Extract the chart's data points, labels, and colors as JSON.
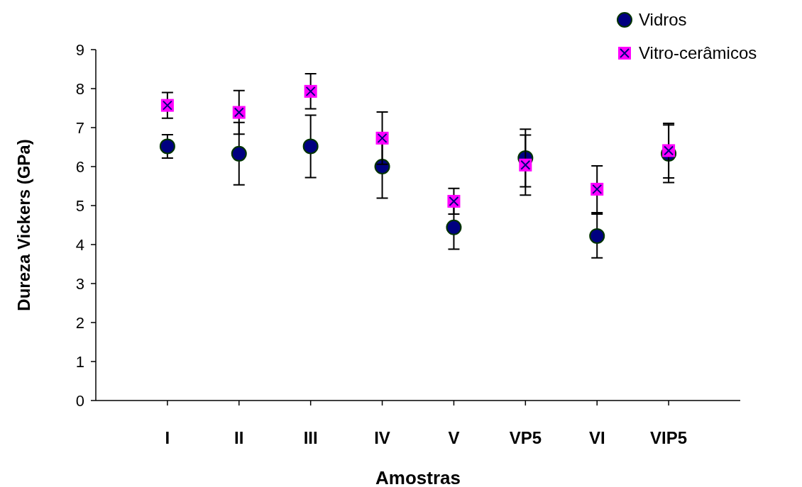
{
  "chart_data": {
    "type": "scatter",
    "xlabel": "Amostras",
    "ylabel": "Dureza Vickers (GPa)",
    "categories": [
      "I",
      "II",
      "III",
      "IV",
      "V",
      "VP5",
      "VI",
      "VIP5"
    ],
    "ylim": [
      0,
      9
    ],
    "yticks": [
      0,
      1,
      2,
      3,
      4,
      5,
      6,
      7,
      8,
      9
    ],
    "grid": false,
    "legend": "top right",
    "series": [
      {
        "name": "Vidros",
        "color": "#000080",
        "marker": "circle",
        "values": [
          6.52,
          6.33,
          6.52,
          6.0,
          4.44,
          6.22,
          4.22,
          6.33
        ],
        "errors": [
          0.3,
          0.8,
          0.8,
          0.81,
          0.56,
          0.74,
          0.56,
          0.74
        ]
      },
      {
        "name": "Vitro-cerâmicos",
        "color": "#ff00ff",
        "marker": "square",
        "values": [
          7.57,
          7.39,
          7.93,
          6.73,
          5.11,
          6.04,
          5.42,
          6.41
        ],
        "errors": [
          0.33,
          0.56,
          0.45,
          0.67,
          0.33,
          0.77,
          0.6,
          0.7
        ]
      }
    ]
  }
}
